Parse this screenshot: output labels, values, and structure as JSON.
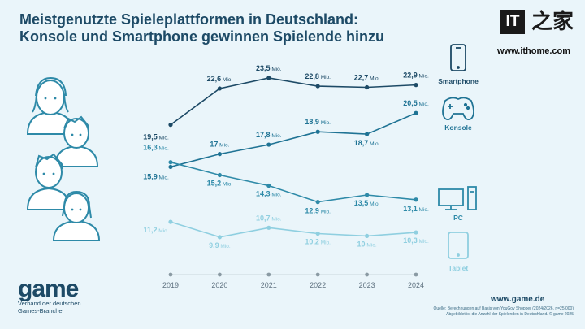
{
  "title_line1": "Meistgenutzte Spieleplattformen in Deutschland:",
  "title_line2": "Konsole und Smartphone gewinnen Spielende hinzu",
  "watermark": {
    "brand": "IT之家",
    "it": "IT",
    "zh": "之家",
    "url": "www.ithome.com"
  },
  "footer": {
    "logo": "game",
    "tagline_line1": "Verband der deutschen",
    "tagline_line2": "Games-Branche",
    "website": "www.game.de",
    "source_line1": "Quelle: Berechnungen auf Basis von YouGov Shopper (2024/2026, n=25.000)",
    "source_line2": "Abgebildet ist die Anzahl der Spielenden in Deutschland. © game 2025"
  },
  "unit_suffix": " Mio.",
  "colors": {
    "title": "#1d4a66",
    "background": "#eaf5fa",
    "Smartphone": "#1d4a66",
    "Konsole": "#1f7394",
    "PC": "#2e8aa8",
    "Tablet": "#8fcfe0",
    "axis": "#8a9aa3"
  },
  "icons": [
    "people-illustration",
    "smartphone-icon",
    "gamepad-icon",
    "pc-icon",
    "tablet-icon"
  ],
  "chart_data": {
    "type": "line",
    "title": "Meistgenutzte Spieleplattformen in Deutschland: Konsole und Smartphone gewinnen Spielende hinzu",
    "xlabel": "",
    "ylabel": "",
    "x": [
      "2019",
      "2020",
      "2021",
      "2022",
      "2023",
      "2024"
    ],
    "ylim": [
      9,
      24
    ],
    "grid": false,
    "legend": "right, beside line ends",
    "series": [
      {
        "name": "Smartphone",
        "values": [
          19.5,
          22.6,
          23.5,
          22.8,
          22.7,
          22.9
        ],
        "labels": [
          "19,5",
          "22,6",
          "23,5",
          "22,8",
          "22,7",
          "22,9"
        ]
      },
      {
        "name": "Konsole",
        "values": [
          15.9,
          17.0,
          17.8,
          18.9,
          18.7,
          20.5
        ],
        "labels": [
          "15,9",
          "17",
          "17,8",
          "18,9",
          "18,7",
          "20,5"
        ]
      },
      {
        "name": "PC",
        "values": [
          16.3,
          15.2,
          14.3,
          12.9,
          13.5,
          13.1
        ],
        "labels": [
          "16,3",
          "15,2",
          "14,3",
          "12,9",
          "13,5",
          "13,1"
        ]
      },
      {
        "name": "Tablet",
        "values": [
          11.2,
          9.9,
          10.7,
          10.2,
          10.0,
          10.3
        ],
        "labels": [
          "11,2",
          "9,9",
          "10,7",
          "10,2",
          "10",
          "10,3"
        ]
      }
    ]
  }
}
